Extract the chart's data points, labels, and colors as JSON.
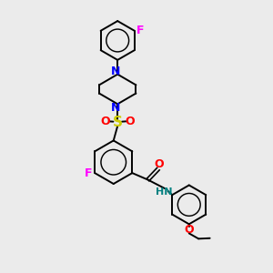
{
  "background_color": "#ebebeb",
  "bond_color": "#000000",
  "colors": {
    "N": "#0000ff",
    "O": "#ff0000",
    "F": "#ff00ff",
    "S": "#cccc00",
    "NH": "#008080",
    "C": "#000000"
  },
  "figsize": [
    3.0,
    3.0
  ],
  "dpi": 100
}
